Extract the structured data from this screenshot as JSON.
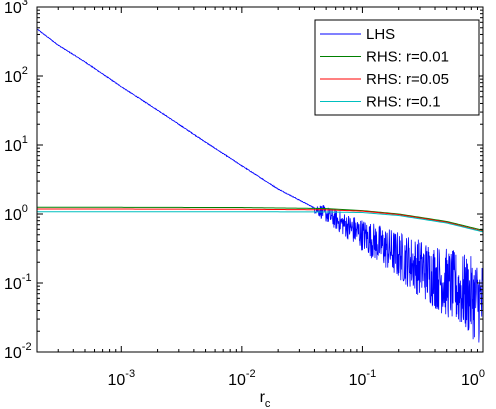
{
  "chart_data": {
    "type": "line",
    "title": "",
    "xlabel": "r",
    "xlabel_subscript": "c",
    "ylabel": "",
    "xscale": "log",
    "yscale": "log",
    "xlim": [
      0.0002,
      1
    ],
    "ylim": [
      0.01,
      1000
    ],
    "grid": false,
    "legend_position": "top-right",
    "x_ticks": [
      {
        "base": "10",
        "exp": "-3",
        "value": 0.001
      },
      {
        "base": "10",
        "exp": "-2",
        "value": 0.01
      },
      {
        "base": "10",
        "exp": "-1",
        "value": 0.1
      },
      {
        "base": "10",
        "exp": "0",
        "value": 1
      }
    ],
    "y_ticks": [
      {
        "base": "10",
        "exp": "-2",
        "value": 0.01
      },
      {
        "base": "10",
        "exp": "-1",
        "value": 0.1
      },
      {
        "base": "10",
        "exp": "0",
        "value": 1
      },
      {
        "base": "10",
        "exp": "1",
        "value": 10
      },
      {
        "base": "10",
        "exp": "2",
        "value": 100
      },
      {
        "base": "10",
        "exp": "3",
        "value": 1000
      }
    ],
    "series": [
      {
        "name": "LHS",
        "color": "#0000ff",
        "noisy_after_x": 0.04,
        "x": [
          0.0002,
          0.0003,
          0.0005,
          0.001,
          0.002,
          0.005,
          0.01,
          0.02,
          0.045,
          0.1,
          0.2,
          0.5,
          1
        ],
        "y": [
          480,
          280,
          160,
          70,
          32,
          11,
          5,
          2.3,
          1.1,
          0.5,
          0.25,
          0.1,
          0.05
        ]
      },
      {
        "name": "RHS: r=0.01",
        "color": "#008000",
        "x": [
          0.0002,
          0.001,
          0.01,
          0.05,
          0.1,
          0.2,
          0.5,
          1
        ],
        "y": [
          1.25,
          1.25,
          1.24,
          1.2,
          1.12,
          1.0,
          0.78,
          0.58
        ]
      },
      {
        "name": "RHS: r=0.05",
        "color": "#ff0000",
        "x": [
          0.0002,
          0.001,
          0.01,
          0.05,
          0.1,
          0.2,
          0.5,
          1
        ],
        "y": [
          1.18,
          1.18,
          1.17,
          1.15,
          1.1,
          0.98,
          0.76,
          0.56
        ]
      },
      {
        "name": "RHS: r=0.1",
        "color": "#00bfbf",
        "x": [
          0.0002,
          0.001,
          0.01,
          0.05,
          0.1,
          0.2,
          0.5,
          1
        ],
        "y": [
          1.08,
          1.08,
          1.08,
          1.07,
          1.05,
          0.95,
          0.74,
          0.55
        ]
      }
    ]
  }
}
